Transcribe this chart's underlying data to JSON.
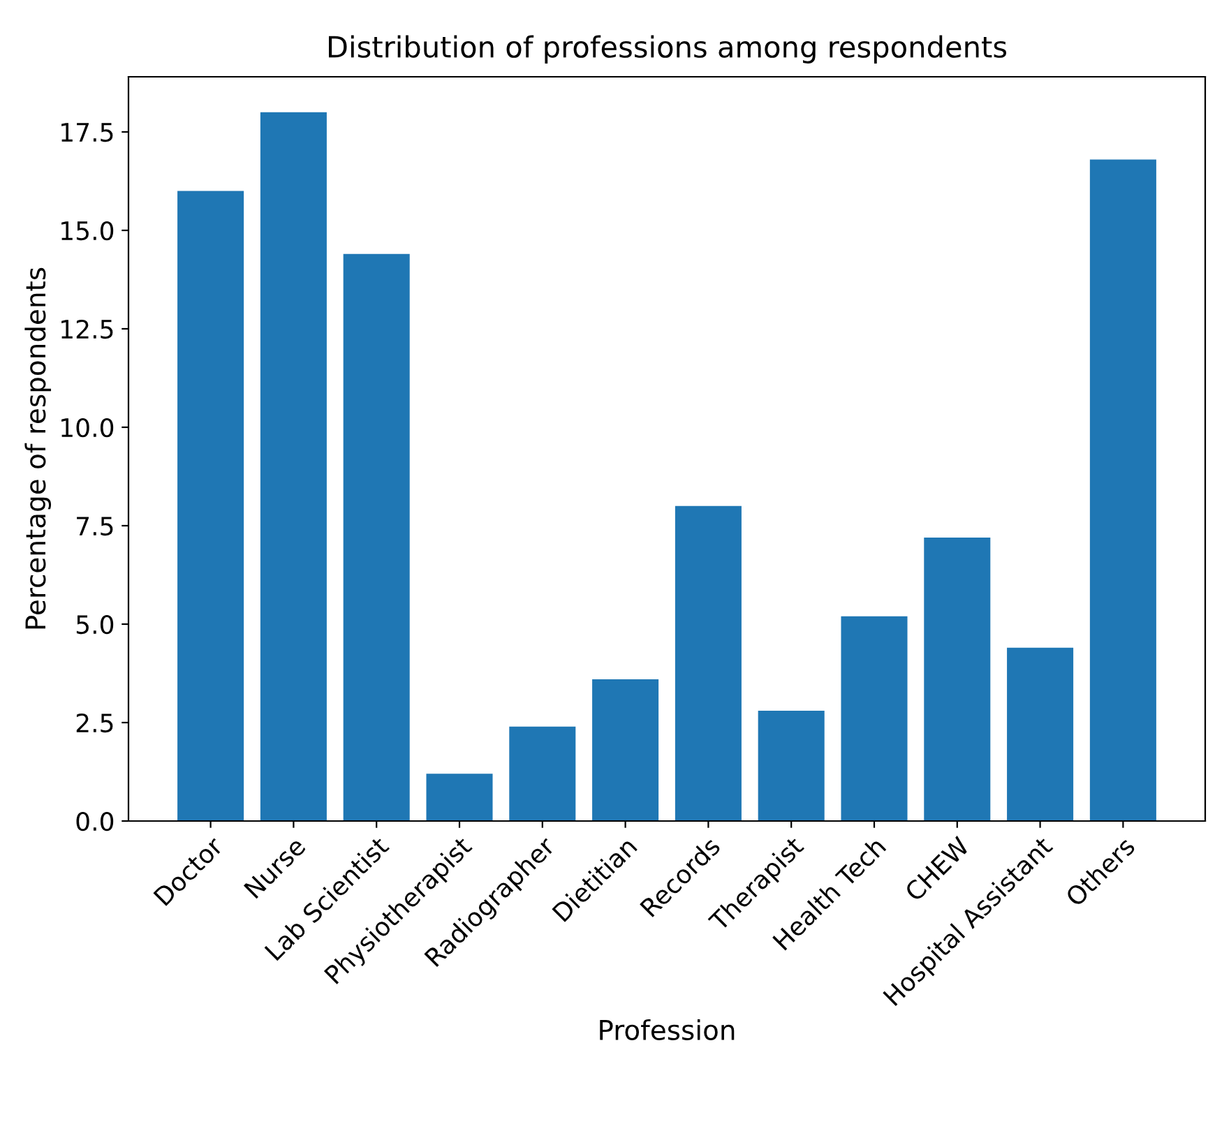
{
  "chart_data": {
    "type": "bar",
    "title": "Distribution of professions among respondents",
    "xlabel": "Profession",
    "ylabel": "Percentage of respondents",
    "categories": [
      "Doctor",
      "Nurse",
      "Lab Scientist",
      "Physiotherapist",
      "Radiographer",
      "Dietitian",
      "Records",
      "Therapist",
      "Health Tech",
      "CHEW",
      "Hospital Assistant",
      "Others"
    ],
    "values": [
      16.0,
      18.0,
      14.4,
      1.2,
      2.4,
      3.6,
      8.0,
      2.8,
      5.2,
      7.2,
      4.4,
      16.8
    ],
    "color": "#1f77b4",
    "ylim": [
      0,
      18.9
    ],
    "yticks": [
      {
        "value": 0,
        "label": "0.0"
      },
      {
        "value": 2.5,
        "label": "2.5"
      },
      {
        "value": 5,
        "label": "5.0"
      },
      {
        "value": 7.5,
        "label": "7.5"
      },
      {
        "value": 10,
        "label": "10.0"
      },
      {
        "value": 12.5,
        "label": "12.5"
      },
      {
        "value": 15,
        "label": "15.0"
      },
      {
        "value": 17.5,
        "label": "17.5"
      }
    ],
    "grid": false
  }
}
